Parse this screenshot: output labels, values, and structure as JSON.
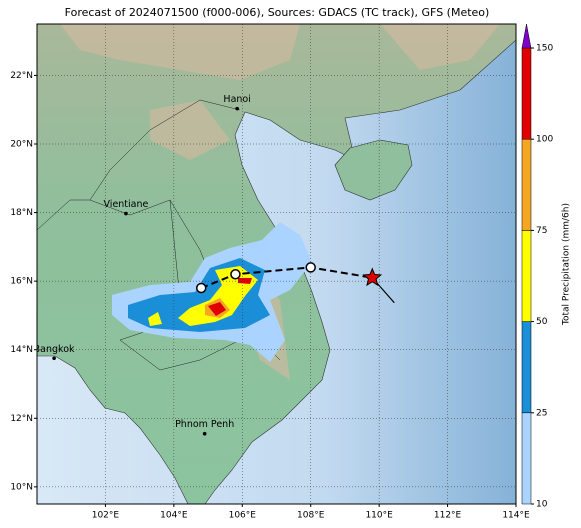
{
  "chart_data": {
    "type": "map",
    "title": "Forecast of 2024071500 (f000-006), Sources: GDACS (TC track), GFS (Meteo)",
    "xlim": [
      100,
      114
    ],
    "ylim": [
      9.5,
      23.5
    ],
    "xticks": [
      {
        "value": 102,
        "label": "102°E"
      },
      {
        "value": 104,
        "label": "104°E"
      },
      {
        "value": 106,
        "label": "106°E"
      },
      {
        "value": 108,
        "label": "108°E"
      },
      {
        "value": 110,
        "label": "110°E"
      },
      {
        "value": 112,
        "label": "112°E"
      },
      {
        "value": 114,
        "label": "114°E"
      }
    ],
    "yticks": [
      {
        "value": 10,
        "label": "10°N"
      },
      {
        "value": 12,
        "label": "12°N"
      },
      {
        "value": 14,
        "label": "14°N"
      },
      {
        "value": 16,
        "label": "16°N"
      },
      {
        "value": 18,
        "label": "18°N"
      },
      {
        "value": 20,
        "label": "20°N"
      },
      {
        "value": 22,
        "label": "22°N"
      }
    ],
    "grid": true,
    "cities": [
      {
        "name": "Hanoi",
        "lon": 105.85,
        "lat": 21.03
      },
      {
        "name": "Vientiane",
        "lon": 102.6,
        "lat": 17.97
      },
      {
        "name": "Bangkok",
        "lon": 100.5,
        "lat": 13.75
      },
      {
        "name": "Phnom Penh",
        "lon": 104.9,
        "lat": 11.55
      }
    ],
    "track": {
      "lon": [
        104.8,
        105.8,
        108.0,
        109.8
      ],
      "lat": [
        15.8,
        16.2,
        16.4,
        16.1
      ]
    },
    "colorbar": {
      "label": "Total Precipitation (mm/6h)",
      "levels": [
        10,
        25,
        50,
        75,
        100,
        150
      ],
      "colors": [
        "#aad4ff",
        "#1a8ed6",
        "#ffff00",
        "#f5a623",
        "#e00000"
      ],
      "extend_color": "#8000c8"
    }
  }
}
